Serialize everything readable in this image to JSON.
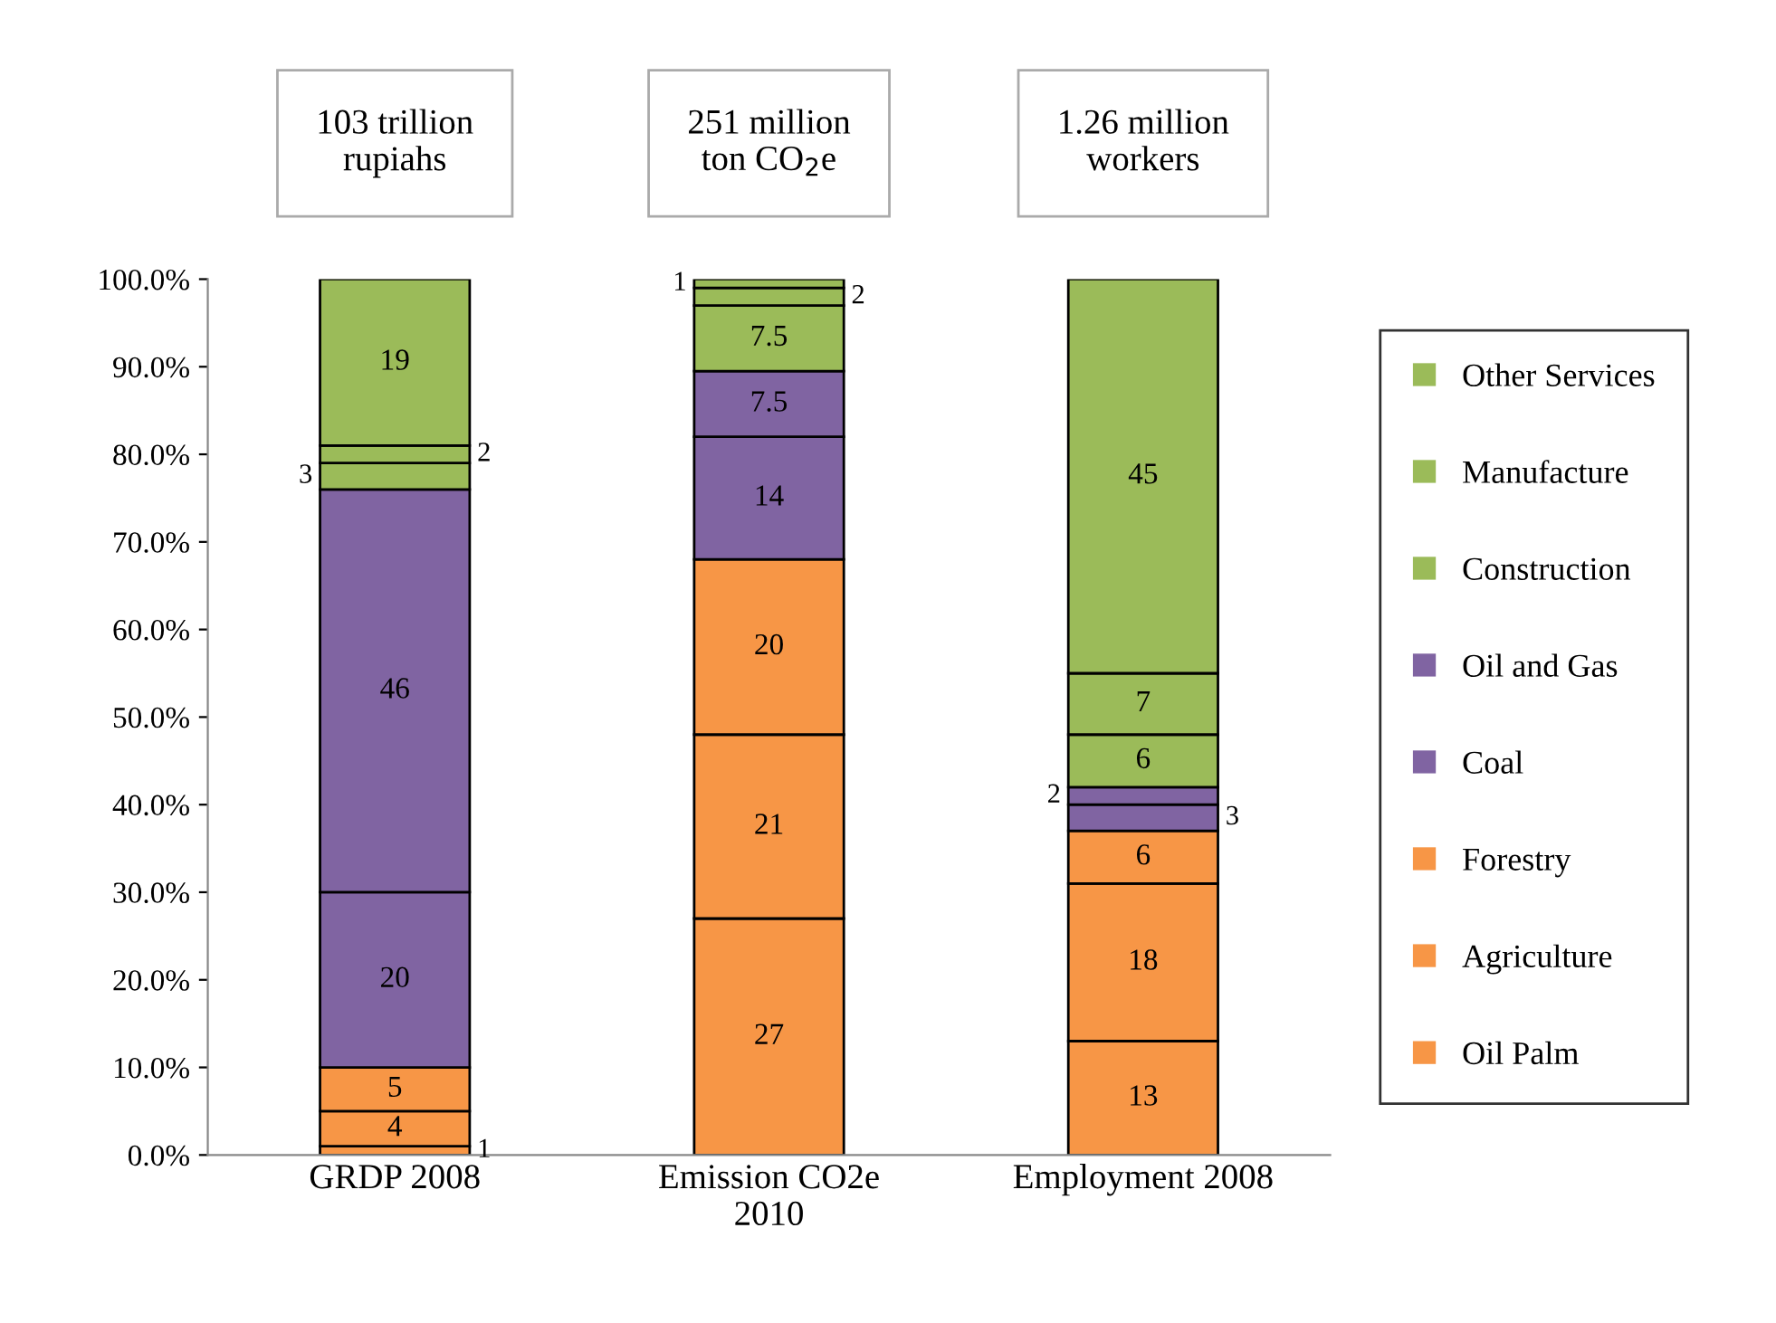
{
  "chart_data": {
    "type": "bar",
    "stacked": true,
    "data_labels": true,
    "grid": false,
    "legend": "right",
    "categories": [
      "GRDP 2008",
      "Emission CO2e 2010",
      "Employment 2008"
    ],
    "annotations": [
      "103 trillion rupiahs",
      "251 million ton CO$_{2}$e",
      "1.26 million workers"
    ],
    "ylim": [
      0,
      100
    ],
    "yticks": [
      {
        "value": 0,
        "label": "0.0%"
      },
      {
        "value": 10,
        "label": "10.0%"
      },
      {
        "value": 20,
        "label": "20.0%"
      },
      {
        "value": 30,
        "label": "30.0%"
      },
      {
        "value": 40,
        "label": "40.0%"
      },
      {
        "value": 50,
        "label": "50.0%"
      },
      {
        "value": 60,
        "label": "60.0%"
      },
      {
        "value": 70,
        "label": "70.0%"
      },
      {
        "value": 80,
        "label": "80.0%"
      },
      {
        "value": 90,
        "label": "90.0%"
      },
      {
        "value": 100,
        "label": "100.0%"
      }
    ],
    "series": [
      {
        "name": "Oil Palm",
        "color": "#f79646",
        "values": [
          1,
          27,
          13
        ]
      },
      {
        "name": "Agriculture",
        "color": "#f79646",
        "values": [
          4,
          21,
          18
        ]
      },
      {
        "name": "Forestry",
        "color": "#f79646",
        "values": [
          5,
          20,
          6
        ]
      },
      {
        "name": "Coal",
        "color": "#8064a2",
        "values": [
          20,
          14,
          3
        ]
      },
      {
        "name": "Oil and Gas",
        "color": "#8064a2",
        "values": [
          46,
          7.5,
          2
        ]
      },
      {
        "name": "Construction",
        "color": "#9bbb59",
        "values": [
          3,
          7.5,
          6
        ]
      },
      {
        "name": "Manufacture",
        "color": "#9bbb59",
        "values": [
          2,
          2,
          7
        ]
      },
      {
        "name": "Other Services",
        "color": "#9bbb59",
        "values": [
          19,
          1,
          45
        ]
      }
    ]
  }
}
